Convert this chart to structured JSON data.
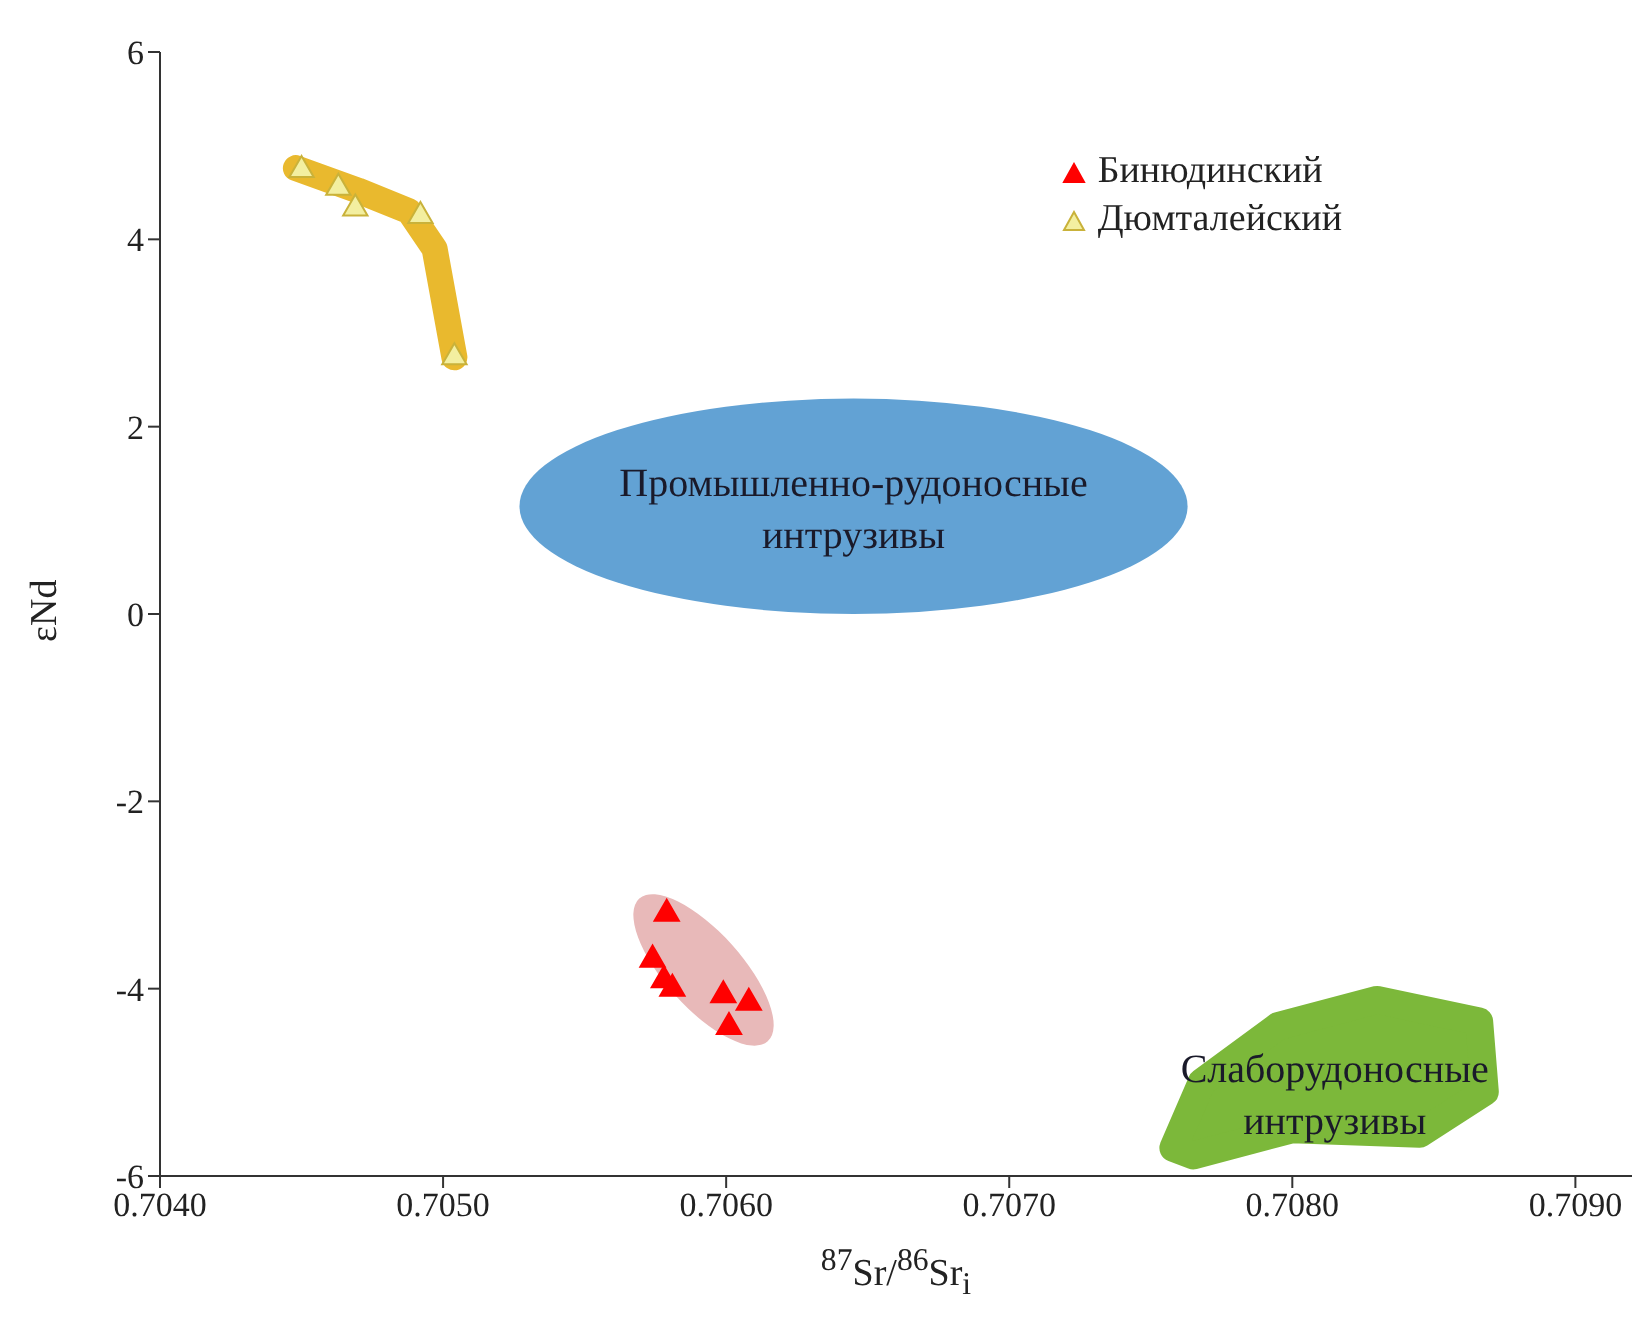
{
  "chart_data": {
    "type": "scatter",
    "xlabel": "$^{87}$Sr/$^{86}$Sr$_{i}$",
    "ylabel": "εNd",
    "xlim": [
      0.704,
      0.7092
    ],
    "xticks": [
      {
        "value": 0.704,
        "label": "0.7040"
      },
      {
        "value": 0.705,
        "label": "0.7050"
      },
      {
        "value": 0.706,
        "label": "0.7060"
      },
      {
        "value": 0.707,
        "label": "0.7070"
      },
      {
        "value": 0.708,
        "label": "0.7080"
      },
      {
        "value": 0.709,
        "label": "0.7090"
      }
    ],
    "ylim": [
      -6,
      6
    ],
    "yticks": [
      -6,
      -4,
      -2,
      0,
      2,
      4,
      6
    ],
    "legend": "top right",
    "marker": "triangle",
    "series": [
      {
        "name": "Бинюдинский",
        "color": "#ff0000",
        "x": [
          0.70579,
          0.70574,
          0.70578,
          0.70581,
          0.70599,
          0.70608,
          0.70601
        ],
        "values": [
          -3.2,
          -3.69,
          -3.91,
          -4.0,
          -4.07,
          -4.15,
          -4.41
        ]
      },
      {
        "name": "Дюмталейский",
        "color": "#f3efa0",
        "x": [
          0.7045,
          0.70463,
          0.70469,
          0.70492,
          0.70504
        ],
        "values": [
          4.74,
          4.55,
          4.33,
          4.25,
          2.74
        ]
      }
    ],
    "annotations": [
      "Промышленно-рудоносные интрузивы",
      "Слаборудоносные интрузивы"
    ]
  }
}
